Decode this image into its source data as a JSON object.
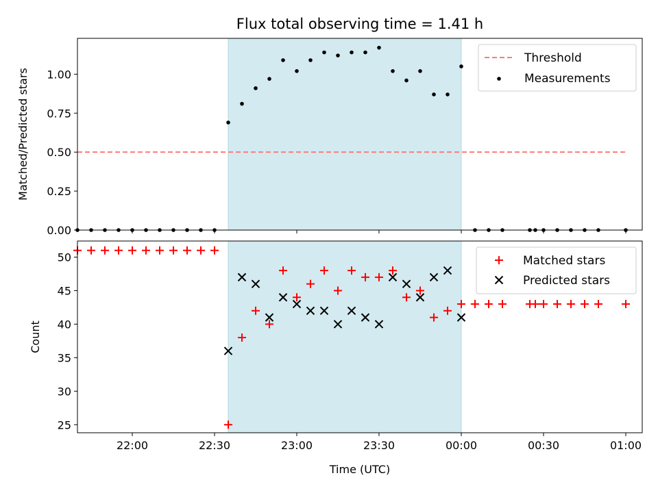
{
  "chart_data": [
    {
      "type": "scatter",
      "title": "Flux total observing time = 1.41 h",
      "ylabel": "Matched/Predicted stars",
      "xlabel": "",
      "xlim": [
        "21:40",
        "01:06"
      ],
      "ylim": [
        0,
        1.23
      ],
      "yticks": [
        "0.00",
        "0.25",
        "0.50",
        "0.75",
        "1.00"
      ],
      "grid": false,
      "legend_position": "top-right",
      "shaded_interval": {
        "start": "22:35",
        "end": "00:00",
        "color": "#d3eaf0"
      },
      "threshold": {
        "name": "Threshold",
        "value": 0.5,
        "x_start": "21:40",
        "x_end": "01:00",
        "color": "#ff7a7a"
      },
      "series": [
        {
          "name": "Measurements",
          "color": "#000000",
          "marker": "dot",
          "points": [
            [
              "21:40",
              0
            ],
            [
              "21:45",
              0
            ],
            [
              "21:50",
              0
            ],
            [
              "21:55",
              0
            ],
            [
              "22:00",
              0
            ],
            [
              "22:05",
              0
            ],
            [
              "22:10",
              0
            ],
            [
              "22:15",
              0
            ],
            [
              "22:20",
              0
            ],
            [
              "22:25",
              0
            ],
            [
              "22:30",
              0
            ],
            [
              "22:35",
              0.69
            ],
            [
              "22:40",
              0.81
            ],
            [
              "22:45",
              0.91
            ],
            [
              "22:50",
              0.97
            ],
            [
              "22:55",
              1.09
            ],
            [
              "23:00",
              1.02
            ],
            [
              "23:05",
              1.09
            ],
            [
              "23:10",
              1.14
            ],
            [
              "23:15",
              1.12
            ],
            [
              "23:20",
              1.14
            ],
            [
              "23:25",
              1.14
            ],
            [
              "23:30",
              1.17
            ],
            [
              "23:35",
              1.02
            ],
            [
              "23:40",
              0.96
            ],
            [
              "23:45",
              1.02
            ],
            [
              "23:50",
              0.87
            ],
            [
              "23:55",
              0.87
            ],
            [
              "00:00",
              1.05
            ],
            [
              "00:05",
              0
            ],
            [
              "00:10",
              0
            ],
            [
              "00:15",
              0
            ],
            [
              "00:25",
              0
            ],
            [
              "00:27",
              0
            ],
            [
              "00:30",
              0
            ],
            [
              "00:35",
              0
            ],
            [
              "00:40",
              0
            ],
            [
              "00:45",
              0
            ],
            [
              "00:50",
              0
            ],
            [
              "01:00",
              0
            ]
          ]
        }
      ]
    },
    {
      "type": "scatter",
      "title": "",
      "ylabel": "Count",
      "xlabel": "Time (UTC)",
      "xlim": [
        "21:40",
        "01:06"
      ],
      "ylim": [
        23.8,
        52.4
      ],
      "yticks": [
        "25",
        "30",
        "35",
        "40",
        "45",
        "50"
      ],
      "xticks": [
        "22:00",
        "22:30",
        "23:00",
        "23:30",
        "00:00",
        "00:30",
        "01:00"
      ],
      "grid": false,
      "legend_position": "top-right",
      "shaded_interval": {
        "start": "22:35",
        "end": "00:00",
        "color": "#d3eaf0"
      },
      "series": [
        {
          "name": "Matched stars",
          "color": "#ff0000",
          "marker": "plus",
          "points": [
            [
              "21:40",
              51
            ],
            [
              "21:45",
              51
            ],
            [
              "21:50",
              51
            ],
            [
              "21:55",
              51
            ],
            [
              "22:00",
              51
            ],
            [
              "22:05",
              51
            ],
            [
              "22:10",
              51
            ],
            [
              "22:15",
              51
            ],
            [
              "22:20",
              51
            ],
            [
              "22:25",
              51
            ],
            [
              "22:30",
              51
            ],
            [
              "22:35",
              25
            ],
            [
              "22:40",
              38
            ],
            [
              "22:45",
              42
            ],
            [
              "22:50",
              40
            ],
            [
              "22:55",
              48
            ],
            [
              "23:00",
              44
            ],
            [
              "23:05",
              46
            ],
            [
              "23:10",
              48
            ],
            [
              "23:15",
              45
            ],
            [
              "23:20",
              48
            ],
            [
              "23:25",
              47
            ],
            [
              "23:30",
              47
            ],
            [
              "23:35",
              48
            ],
            [
              "23:40",
              44
            ],
            [
              "23:45",
              45
            ],
            [
              "23:50",
              41
            ],
            [
              "23:55",
              42
            ],
            [
              "00:00",
              43
            ],
            [
              "00:05",
              43
            ],
            [
              "00:10",
              43
            ],
            [
              "00:15",
              43
            ],
            [
              "00:25",
              43
            ],
            [
              "00:27",
              43
            ],
            [
              "00:30",
              43
            ],
            [
              "00:35",
              43
            ],
            [
              "00:40",
              43
            ],
            [
              "00:45",
              43
            ],
            [
              "00:50",
              43
            ],
            [
              "01:00",
              43
            ]
          ]
        },
        {
          "name": "Predicted stars",
          "color": "#000000",
          "marker": "x",
          "points": [
            [
              "22:35",
              36
            ],
            [
              "22:40",
              47
            ],
            [
              "22:45",
              46
            ],
            [
              "22:50",
              41
            ],
            [
              "22:55",
              44
            ],
            [
              "23:00",
              43
            ],
            [
              "23:05",
              42
            ],
            [
              "23:10",
              42
            ],
            [
              "23:15",
              40
            ],
            [
              "23:20",
              42
            ],
            [
              "23:25",
              41
            ],
            [
              "23:30",
              40
            ],
            [
              "23:35",
              47
            ],
            [
              "23:40",
              46
            ],
            [
              "23:45",
              44
            ],
            [
              "23:50",
              47
            ],
            [
              "23:55",
              48
            ],
            [
              "00:00",
              41
            ]
          ]
        }
      ]
    }
  ]
}
